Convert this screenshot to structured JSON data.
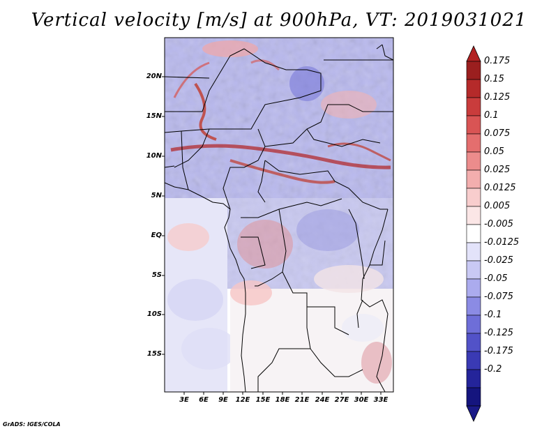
{
  "title": "Vertical velocity [m/s] at 900hPa, VT: 2019031021",
  "footer": "GrADS: IGES/COLA",
  "map": {
    "region": "West and Central Africa",
    "lat_labels": [
      "20N",
      "15N",
      "10N",
      "5N",
      "EQ",
      "5S",
      "10S",
      "15S"
    ],
    "lon_labels": [
      "3E",
      "6E",
      "9E",
      "12E",
      "15E",
      "18E",
      "21E",
      "24E",
      "27E",
      "30E",
      "33E"
    ]
  },
  "colorbar": {
    "labels": [
      "0.175",
      "0.15",
      "0.125",
      "0.1",
      "0.075",
      "0.05",
      "0.025",
      "0.0125",
      "0.005",
      "-0.005",
      "-0.0125",
      "-0.025",
      "-0.05",
      "-0.075",
      "-0.1",
      "-0.125",
      "-0.175",
      "-0.2"
    ],
    "colors": [
      "#9b1f1f",
      "#b52a2a",
      "#c93c3c",
      "#d95454",
      "#e46e6e",
      "#ec8c8c",
      "#f3aeae",
      "#f8cdcd",
      "#fbe6e6",
      "#ffffff",
      "#e3e3fa",
      "#c9c9f4",
      "#ababee",
      "#8b8be4",
      "#6e6ed8",
      "#5252c8",
      "#3a3ab4",
      "#24249a",
      "#15157e"
    ],
    "top_color": "#b22222",
    "bottom_color": "#1a1a88"
  }
}
